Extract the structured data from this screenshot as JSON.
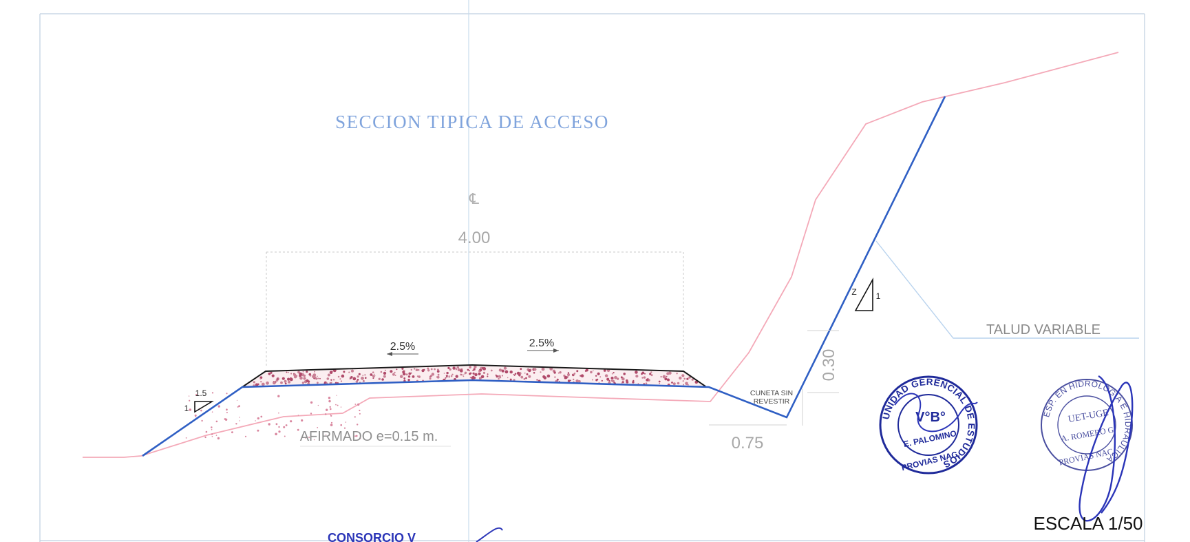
{
  "drawing": {
    "title": "SECCION TIPICA DE ACCESO",
    "centerline_symbol": "℄",
    "dimensions": {
      "road_width": "4.00",
      "ditch_width": "0.75",
      "ditch_depth": "0.30"
    },
    "slopes": {
      "left_crossfall": "2.5%",
      "right_crossfall": "2.5%",
      "fill_slope_h": "1.5",
      "fill_slope_v": "1",
      "cut_slope_h": "Z",
      "cut_slope_v": "1"
    },
    "labels": {
      "pavement": "AFIRMADO e=0.15 m.",
      "ditch_line1": "CUNETA SIN",
      "ditch_line2": "REVESTIR",
      "cut_slope": "TALUD VARIABLE",
      "scale": "ESCALA 1/50",
      "consortium": "CONSORCIO V"
    },
    "stamp_left": {
      "ring_text": "UNIDAD GERENCIAL DE ESTUDIOS",
      "center_top": "V°B°",
      "center_name": "E. PALOMINO",
      "bottom_text": "PROVIAS NAC."
    },
    "stamp_right": {
      "ring_text": "ESP. EN HIDROLOGIA E HIDRAULICA",
      "center_top": "UET-UGE",
      "center_name": "A. ROMERO G.",
      "bottom_text": "PROVIAS NAC."
    },
    "colors": {
      "design_line": "#2f5fc4",
      "ground_line": "#f4a9b8",
      "dimension_gray": "#a8a8a8",
      "stamp_blue": "#2b35b8",
      "title_blue": "#7fa3dc"
    }
  }
}
